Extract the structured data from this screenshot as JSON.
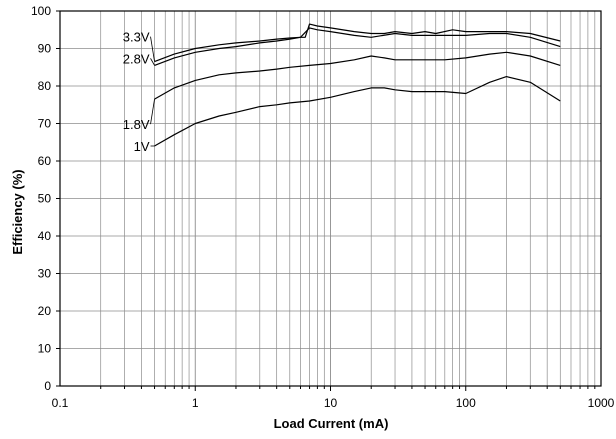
{
  "chart_data": {
    "type": "line",
    "title": "",
    "xlabel": "Load Current (mA)",
    "ylabel": "Efficiency (%)",
    "x_scale": "log",
    "xlim": [
      0.1,
      1000
    ],
    "ylim": [
      0,
      100
    ],
    "x_ticks": [
      0.1,
      1,
      10,
      100,
      1000
    ],
    "x_tick_labels": [
      "0.1",
      "1",
      "10",
      "100",
      "1000"
    ],
    "y_ticks": [
      0,
      10,
      20,
      30,
      40,
      50,
      60,
      70,
      80,
      90,
      100
    ],
    "y_tick_labels": [
      "0",
      "10",
      "20",
      "30",
      "40",
      "50",
      "60",
      "70",
      "80",
      "90",
      "100"
    ],
    "grid": true,
    "legend": "none",
    "line_color": "#000000",
    "series": [
      {
        "name": "3.3V",
        "x": [
          0.5,
          0.7,
          1,
          1.5,
          2,
          3,
          4,
          5,
          6,
          6.5,
          7,
          8,
          10,
          15,
          20,
          25,
          30,
          40,
          50,
          60,
          80,
          100,
          150,
          200,
          300,
          500
        ],
        "y": [
          86.5,
          88.5,
          90,
          91,
          91.5,
          92,
          92.5,
          92.8,
          93,
          93,
          96.5,
          96,
          95.5,
          94.5,
          94,
          94,
          94.5,
          94,
          94.5,
          94,
          95,
          94.5,
          94.5,
          94.5,
          94,
          92
        ]
      },
      {
        "name": "2.8V",
        "x": [
          0.5,
          0.7,
          1,
          1.5,
          2,
          3,
          4,
          5,
          6,
          7,
          8,
          10,
          15,
          20,
          30,
          40,
          50,
          70,
          100,
          150,
          200,
          300,
          500
        ],
        "y": [
          85.5,
          87.5,
          89,
          90,
          90.5,
          91.5,
          92,
          92.5,
          93,
          95.5,
          95,
          94.5,
          93.5,
          93,
          94,
          93.5,
          93.5,
          93.5,
          93.5,
          94,
          94,
          93,
          90.5
        ]
      },
      {
        "name": "1.8V",
        "x": [
          0.5,
          0.7,
          1,
          1.5,
          2,
          3,
          4,
          5,
          7,
          10,
          15,
          20,
          25,
          30,
          40,
          50,
          70,
          100,
          150,
          200,
          300,
          500
        ],
        "y": [
          76.5,
          79.5,
          81.5,
          83,
          83.5,
          84,
          84.5,
          85,
          85.5,
          86,
          87,
          88,
          87.5,
          87,
          87,
          87,
          87,
          87.5,
          88.5,
          89,
          88,
          85.5
        ]
      },
      {
        "name": "1V",
        "x": [
          0.5,
          0.7,
          1,
          1.5,
          2,
          3,
          4,
          5,
          7,
          10,
          15,
          20,
          25,
          30,
          40,
          50,
          70,
          100,
          150,
          200,
          300,
          500
        ],
        "y": [
          64,
          67,
          70,
          72,
          73,
          74.5,
          75,
          75.5,
          76,
          77,
          78.5,
          79.5,
          79.5,
          79,
          78.5,
          78.5,
          78.5,
          78,
          81,
          82.5,
          81,
          76
        ]
      }
    ]
  }
}
